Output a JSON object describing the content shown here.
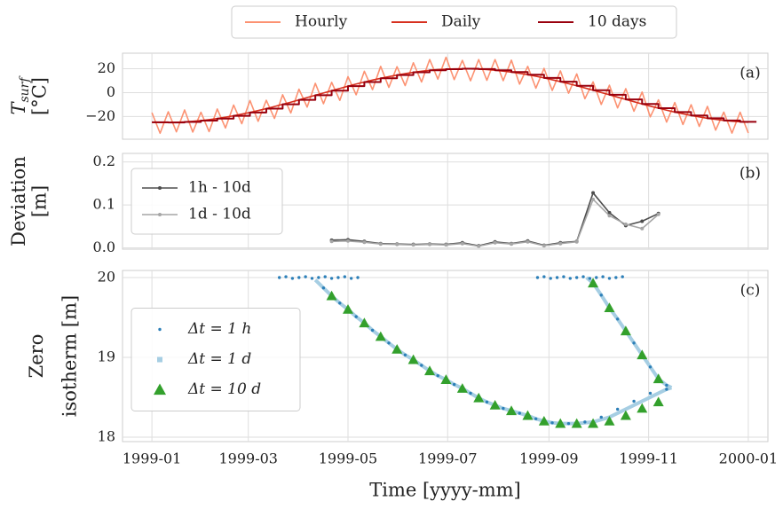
{
  "chart_data": [
    {
      "type": "line",
      "panel_label": "(a)",
      "ylabel": "T",
      "ylabel_sub": "surf",
      "ylabel_2": "[°C]",
      "xlim": [
        -18,
        377
      ],
      "ylim": [
        -39,
        33
      ],
      "yticks": [
        {
          "value": -20,
          "label": "−20"
        },
        0,
        20
      ],
      "grid": true,
      "legend": "outside top",
      "series": [
        {
          "name": "Hourly",
          "color": "#fc9272",
          "drawstyle": "default",
          "x": [
            0,
            5,
            10,
            15,
            20,
            25,
            30,
            35,
            40,
            45,
            50,
            55,
            60,
            65,
            70,
            75,
            80,
            85,
            90,
            95,
            100,
            105,
            110,
            115,
            120,
            125,
            130,
            135,
            140,
            145,
            150,
            155,
            160,
            165,
            170,
            175,
            180,
            185,
            190,
            195,
            200,
            205,
            210,
            215,
            220,
            225,
            230,
            235,
            240,
            245,
            250,
            255,
            260,
            265,
            270,
            275,
            280,
            285,
            290,
            295,
            300,
            305,
            310,
            315,
            320,
            325,
            330,
            335,
            340,
            345,
            350,
            355,
            360,
            365
          ],
          "values": [
            -16.8,
            -34.0,
            -16.0,
            -32.8,
            -14.5,
            -33.0,
            -16.4,
            -32.6,
            -13.7,
            -29.6,
            -10.4,
            -26.0,
            -6.6,
            -24.0,
            -6.4,
            -21.6,
            -1.8,
            -17.0,
            2.9,
            -12.1,
            7.8,
            -9.3,
            8.6,
            -6.5,
            13.4,
            -1.8,
            17.9,
            2.5,
            22.0,
            4.4,
            21.7,
            5.9,
            25.0,
            8.9,
            27.7,
            11.3,
            29.6,
            10.9,
            27.0,
            9.9,
            27.7,
            10.3,
            27.7,
            10.0,
            27.2,
            7.1,
            22.0,
            3.7,
            20.3,
            1.8,
            18.2,
            -0.5,
            15.7,
            -5.1,
            9.0,
            -9.9,
            6.2,
            -12.8,
            3.3,
            -15.6,
            0.5,
            -20.3,
            -6.0,
            -24.7,
            -8.3,
            -26.7,
            -10.1,
            -28.3,
            -11.5,
            -31.4,
            -16.3,
            -33.9,
            -16.4,
            -33.8
          ]
        },
        {
          "name": "Daily",
          "color": "#d7301f",
          "drawstyle": "default",
          "x": [
            0,
            5,
            10,
            15,
            20,
            25,
            30,
            35,
            40,
            45,
            50,
            55,
            60,
            65,
            70,
            75,
            80,
            85,
            90,
            95,
            100,
            105,
            110,
            115,
            120,
            125,
            130,
            135,
            140,
            145,
            150,
            155,
            160,
            165,
            170,
            175,
            180,
            185,
            190,
            195,
            200,
            205,
            210,
            215,
            220,
            225,
            230,
            235,
            240,
            245,
            250,
            255,
            260,
            265,
            270,
            275,
            280,
            285,
            290,
            295,
            300,
            305,
            310,
            315,
            320,
            325,
            330,
            335,
            340,
            345,
            350,
            355,
            360,
            365
          ],
          "values": [
            -24.8,
            -25.0,
            -25.0,
            -24.8,
            -24.5,
            -24.0,
            -23.4,
            -22.6,
            -21.7,
            -20.6,
            -19.4,
            -18.0,
            -16.6,
            -15.0,
            -13.4,
            -11.6,
            -9.8,
            -8.0,
            -6.1,
            -4.1,
            -2.2,
            -0.3,
            1.6,
            3.5,
            5.4,
            7.2,
            8.9,
            10.5,
            12.0,
            13.4,
            14.7,
            15.9,
            17.0,
            17.9,
            18.7,
            19.3,
            19.6,
            19.9,
            20.0,
            19.9,
            19.7,
            19.3,
            18.7,
            18.0,
            17.2,
            16.1,
            15.0,
            13.7,
            12.3,
            10.8,
            9.2,
            7.5,
            5.7,
            3.9,
            2.0,
            0.1,
            -1.8,
            -3.8,
            -5.7,
            -7.6,
            -9.5,
            -11.3,
            -13.0,
            -14.7,
            -16.3,
            -17.7,
            -19.1,
            -20.3,
            -21.5,
            -22.4,
            -23.3,
            -23.9,
            -24.4,
            -24.8
          ]
        },
        {
          "name": "10 days",
          "color": "#99000d",
          "drawstyle": "steps-post",
          "x": [
            0,
            10,
            20,
            30,
            40,
            50,
            60,
            70,
            80,
            90,
            100,
            110,
            120,
            130,
            140,
            150,
            160,
            170,
            180,
            190,
            200,
            210,
            220,
            230,
            240,
            250,
            260,
            270,
            280,
            290,
            300,
            310,
            320,
            330,
            340,
            350,
            360
          ],
          "values": [
            -24.8,
            -25.0,
            -24.5,
            -23.4,
            -21.7,
            -19.4,
            -16.6,
            -13.4,
            -9.8,
            -6.1,
            -2.2,
            1.6,
            5.4,
            8.9,
            12.0,
            14.7,
            17.0,
            18.7,
            19.6,
            20.0,
            19.7,
            18.7,
            17.2,
            15.0,
            12.3,
            9.2,
            5.7,
            2.0,
            -1.8,
            -5.7,
            -9.5,
            -13.0,
            -16.3,
            -19.1,
            -21.5,
            -23.3,
            -24.4
          ]
        }
      ]
    },
    {
      "type": "line",
      "panel_label": "(b)",
      "ylabel": "Deviation",
      "ylabel_2": "[m]",
      "xlim": [
        -18,
        377
      ],
      "ylim": [
        -0.003,
        0.22
      ],
      "yticks": [
        {
          "value": 0,
          "label": "0.0"
        },
        {
          "value": 0.1,
          "label": "0.1"
        },
        {
          "value": 0.2,
          "label": "0.2"
        }
      ],
      "grid": true,
      "legend": "upper left",
      "series": [
        {
          "name": "1h - 10d",
          "color": "#4d4d4d",
          "marker": "dot",
          "line": true,
          "x": [
            110,
            120,
            130,
            140,
            150,
            160,
            170,
            180,
            190,
            200,
            210,
            220,
            230,
            240,
            250,
            260,
            270,
            280,
            290,
            300,
            310
          ],
          "values": [
            0.018,
            0.019,
            0.015,
            0.01,
            0.009,
            0.008,
            0.009,
            0.008,
            0.012,
            0.005,
            0.014,
            0.01,
            0.016,
            0.006,
            0.012,
            0.015,
            0.128,
            0.082,
            0.052,
            0.062,
            0.08
          ]
        },
        {
          "name": "1d - 10d",
          "color": "#a6a6a6",
          "marker": "dot",
          "line": true,
          "x": [
            110,
            120,
            130,
            140,
            150,
            160,
            170,
            180,
            190,
            200,
            210,
            220,
            230,
            240,
            250,
            260,
            270,
            280,
            290,
            300,
            310
          ],
          "values": [
            0.015,
            0.016,
            0.013,
            0.009,
            0.008,
            0.007,
            0.008,
            0.007,
            0.01,
            0.004,
            0.012,
            0.009,
            0.014,
            0.005,
            0.01,
            0.014,
            0.113,
            0.075,
            0.055,
            0.045,
            0.078
          ]
        }
      ]
    },
    {
      "type": "line",
      "panel_label": "(c)",
      "ylabel": "Zero",
      "ylabel_2": "isotherm [m]",
      "xlabel": "Time [yyyy-mm]",
      "xlim": [
        -18,
        377
      ],
      "ylim": [
        17.944,
        20.089
      ],
      "yticks": [
        18,
        19,
        20
      ],
      "xticks": [
        {
          "value": 0,
          "label": "1999-01"
        },
        {
          "value": 59,
          "label": "1999-03"
        },
        {
          "value": 120,
          "label": "1999-05"
        },
        {
          "value": 181,
          "label": "1999-07"
        },
        {
          "value": 243,
          "label": "1999-09"
        },
        {
          "value": 304,
          "label": "1999-11"
        },
        {
          "value": 365,
          "label": "2000-01"
        }
      ],
      "grid": true,
      "legend": "center left",
      "series": [
        {
          "name": "Δt = 1 d",
          "color": "#a6cee3",
          "marker": "square",
          "line": true,
          "x": [
            100,
            105,
            110,
            115,
            120,
            125,
            130,
            135,
            140,
            145,
            150,
            155,
            160,
            165,
            170,
            175,
            180,
            185,
            190,
            195,
            200,
            205,
            210,
            215,
            220,
            225,
            230,
            235,
            240,
            245,
            250,
            255,
            260,
            265,
            270,
            275,
            280,
            285,
            290,
            295,
            300,
            305,
            310,
            315,
            318,
            null,
            266,
            270,
            275,
            280,
            285,
            290,
            295,
            300,
            305,
            310,
            315,
            318
          ],
          "values": [
            19.97,
            19.87,
            19.77,
            19.68,
            19.6,
            19.51,
            19.43,
            19.34,
            19.26,
            19.18,
            19.1,
            19.03,
            18.97,
            18.9,
            18.83,
            18.77,
            18.72,
            18.66,
            18.61,
            18.55,
            18.49,
            18.44,
            18.4,
            18.36,
            18.33,
            18.3,
            18.27,
            18.23,
            18.2,
            18.18,
            18.17,
            18.17,
            18.17,
            18.18,
            18.19,
            18.22,
            18.25,
            18.3,
            18.35,
            18.4,
            18.45,
            18.5,
            18.55,
            18.6,
            18.62,
            null,
            20.0,
            19.93,
            19.78,
            19.62,
            19.48,
            19.33,
            19.18,
            19.03,
            18.88,
            18.73,
            18.65,
            18.62
          ]
        },
        {
          "name": "Δt = 1 h",
          "color": "#2c7fb8",
          "marker": "dot",
          "line": false,
          "x": [
            78,
            82,
            86,
            90,
            94,
            98,
            102,
            106,
            110,
            114,
            118,
            122,
            126,
            105,
            115,
            125,
            135,
            145,
            155,
            165,
            175,
            185,
            195,
            205,
            215,
            225,
            235,
            245,
            255,
            265,
            275,
            285,
            295,
            305,
            315,
            236,
            240,
            244,
            248,
            252,
            256,
            260,
            264,
            268,
            272,
            276,
            280,
            284,
            288,
            270,
            275,
            280,
            285,
            290,
            295,
            300,
            305,
            310,
            315
          ],
          "values": [
            20.0,
            20.01,
            19.99,
            20.0,
            20.01,
            19.99,
            20.0,
            20.01,
            19.99,
            20.0,
            20.01,
            19.99,
            20.0,
            19.87,
            19.68,
            19.51,
            19.34,
            19.18,
            19.03,
            18.9,
            18.77,
            18.66,
            18.55,
            18.44,
            18.36,
            18.3,
            18.23,
            18.18,
            18.17,
            18.19,
            18.25,
            18.35,
            18.45,
            18.55,
            18.6,
            20.0,
            20.01,
            19.99,
            20.0,
            20.01,
            19.99,
            20.0,
            20.01,
            19.99,
            20.0,
            20.01,
            19.99,
            20.0,
            20.01,
            19.93,
            19.78,
            19.62,
            19.48,
            19.33,
            19.18,
            19.03,
            18.88,
            18.73,
            18.65
          ]
        },
        {
          "name": "Δt = 10 d",
          "color": "#33a02c",
          "marker": "triangle",
          "line": false,
          "x": [
            110,
            120,
            130,
            140,
            150,
            160,
            170,
            180,
            190,
            200,
            210,
            220,
            230,
            240,
            250,
            260,
            270,
            280,
            290,
            300,
            310,
            270,
            280,
            290,
            300,
            310
          ],
          "values": [
            19.77,
            19.6,
            19.43,
            19.26,
            19.1,
            18.97,
            18.83,
            18.72,
            18.61,
            18.49,
            18.4,
            18.33,
            18.27,
            18.2,
            18.17,
            18.17,
            18.17,
            18.2,
            18.27,
            18.36,
            18.44,
            19.93,
            19.62,
            19.33,
            19.03,
            18.73
          ]
        }
      ]
    }
  ]
}
